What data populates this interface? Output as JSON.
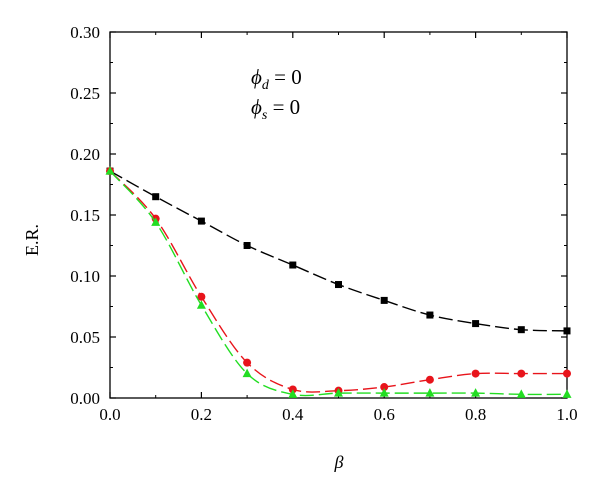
{
  "chart_data": {
    "type": "line",
    "xlabel": "β",
    "ylabel": "E.R.",
    "xlim": [
      0.0,
      1.0
    ],
    "ylim": [
      0.0,
      0.3
    ],
    "x_ticks": [
      "0.0",
      "0.2",
      "0.4",
      "0.6",
      "0.8",
      "1.0"
    ],
    "y_ticks": [
      "0.00",
      "0.05",
      "0.10",
      "0.15",
      "0.20",
      "0.25",
      "0.30"
    ],
    "grid": false,
    "legend": "none",
    "annotations": [
      {
        "symbol": "ϕ",
        "sub": "d",
        "text": " = 0"
      },
      {
        "symbol": "ϕ",
        "sub": "s",
        "text": " = 0"
      }
    ],
    "series": [
      {
        "marker": "square",
        "line": "dashed",
        "color": "#000000",
        "x": [
          0.0,
          0.1,
          0.2,
          0.3,
          0.4,
          0.5,
          0.6,
          0.7,
          0.8,
          0.9,
          1.0
        ],
        "y": [
          0.186,
          0.165,
          0.145,
          0.125,
          0.109,
          0.093,
          0.08,
          0.068,
          0.061,
          0.056,
          0.055
        ]
      },
      {
        "marker": "circle",
        "line": "dashed",
        "color": "#e8141b",
        "x": [
          0.0,
          0.1,
          0.2,
          0.3,
          0.4,
          0.5,
          0.6,
          0.7,
          0.8,
          0.9,
          1.0
        ],
        "y": [
          0.186,
          0.147,
          0.083,
          0.029,
          0.007,
          0.006,
          0.009,
          0.015,
          0.02,
          0.02,
          0.02
        ]
      },
      {
        "marker": "triangle",
        "line": "dashed",
        "color": "#22dd22",
        "x": [
          0.0,
          0.1,
          0.2,
          0.3,
          0.4,
          0.5,
          0.6,
          0.7,
          0.8,
          0.9,
          1.0
        ],
        "y": [
          0.186,
          0.144,
          0.076,
          0.02,
          0.003,
          0.004,
          0.004,
          0.004,
          0.004,
          0.003,
          0.003
        ]
      }
    ]
  }
}
